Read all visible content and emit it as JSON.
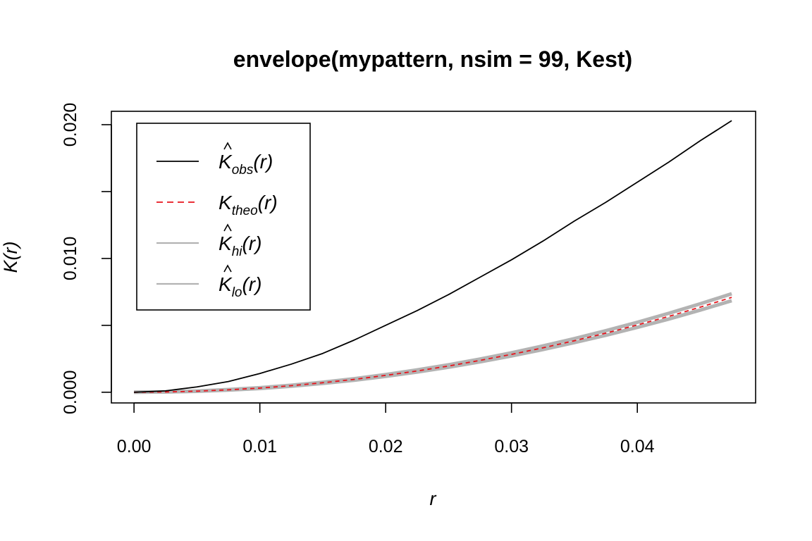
{
  "chart_data": {
    "type": "line",
    "title": "envelope(mypattern, nsim = 99, Kest)",
    "xlabel": "r",
    "ylabel": "K(r)",
    "xlim": [
      -0.0018,
      0.0494
    ],
    "ylim": [
      -0.0008,
      0.021
    ],
    "x_ticks": [
      0.0,
      0.01,
      0.02,
      0.03,
      0.04
    ],
    "x_tick_labels": [
      "0.00",
      "0.01",
      "0.02",
      "0.03",
      "0.04"
    ],
    "y_ticks": [
      0.0,
      0.005,
      0.01,
      0.015,
      0.02
    ],
    "y_tick_labels": [
      "0.000",
      "",
      "0.010",
      "",
      "0.020"
    ],
    "grid": false,
    "legend_position": "top-left",
    "x": [
      0.0,
      0.0025,
      0.005,
      0.0075,
      0.01,
      0.0125,
      0.015,
      0.0175,
      0.02,
      0.0225,
      0.025,
      0.0275,
      0.03,
      0.0325,
      0.035,
      0.0375,
      0.04,
      0.0425,
      0.045,
      0.0475
    ],
    "series": [
      {
        "name": "obs",
        "legend_main": "K",
        "legend_sub": "obs",
        "legend_hat": true,
        "color": "#000000",
        "style": "solid",
        "values": [
          0.0,
          0.0001,
          0.0004,
          0.0008,
          0.0014,
          0.0021,
          0.0029,
          0.0039,
          0.005,
          0.0061,
          0.0073,
          0.0086,
          0.0099,
          0.0113,
          0.0128,
          0.0142,
          0.0157,
          0.0172,
          0.0188,
          0.0203
        ]
      },
      {
        "name": "theo",
        "legend_main": "K",
        "legend_sub": "theo",
        "legend_hat": false,
        "color": "#e8141c",
        "style": "dashed",
        "values": [
          0.0,
          2e-05,
          8e-05,
          0.00018,
          0.00031,
          0.00049,
          0.00071,
          0.00096,
          0.00126,
          0.00159,
          0.00196,
          0.00238,
          0.00283,
          0.00332,
          0.00385,
          0.00442,
          0.00503,
          0.00567,
          0.00636,
          0.00709
        ]
      },
      {
        "name": "hi",
        "legend_main": "K",
        "legend_sub": "hi",
        "legend_hat": true,
        "color": "#b3b3b3",
        "style": "solid",
        "values": [
          0.0,
          2e-05,
          9e-05,
          0.0002,
          0.00034,
          0.00052,
          0.00075,
          0.00101,
          0.00132,
          0.00167,
          0.00205,
          0.00248,
          0.00295,
          0.00346,
          0.00401,
          0.0046,
          0.00523,
          0.0059,
          0.00661,
          0.00736
        ]
      },
      {
        "name": "lo",
        "legend_main": "K",
        "legend_sub": "lo",
        "legend_hat": true,
        "color": "#b3b3b3",
        "style": "solid",
        "values": [
          0.0,
          2e-05,
          7e-05,
          0.00016,
          0.00028,
          0.00045,
          0.00066,
          0.0009,
          0.00119,
          0.00151,
          0.00187,
          0.00227,
          0.00271,
          0.00319,
          0.00371,
          0.00426,
          0.00485,
          0.00547,
          0.00614,
          0.00684
        ]
      }
    ]
  }
}
